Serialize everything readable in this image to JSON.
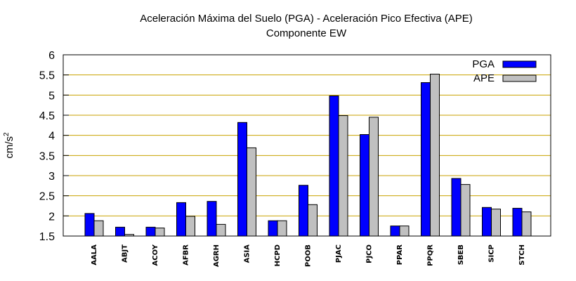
{
  "chart_data": {
    "type": "bar",
    "title": "Aceleración Máxima del Suelo (PGA) -  Aceleración Pico Efectiva (APE)",
    "subtitle": "Componente EW",
    "xlabel": "",
    "ylabel": "cm/s",
    "ylabel_sup": "2",
    "ylim": [
      1.5,
      6
    ],
    "yticks": [
      "1.5",
      "2",
      "2.5",
      "3",
      "3.5",
      "4",
      "4.5",
      "5",
      "5.5",
      "6"
    ],
    "ytick_values": [
      1.5,
      2,
      2.5,
      3,
      3.5,
      4,
      4.5,
      5,
      5.5,
      6
    ],
    "grid": true,
    "legend_position": "top-right",
    "categories": [
      "AALA",
      "ABJT",
      "ACOY",
      "AFBR",
      "AGRH",
      "ASIA",
      "HCPD",
      "POOB",
      "PJAC",
      "PJCO",
      "PPAR",
      "PPQR",
      "SBEB",
      "SICP",
      "STCH"
    ],
    "series": [
      {
        "name": "PGA",
        "color": "#0000ff",
        "values": [
          2.06,
          1.72,
          1.72,
          2.33,
          2.36,
          4.32,
          1.88,
          2.76,
          4.98,
          4.02,
          1.75,
          5.31,
          2.93,
          2.21,
          2.19
        ]
      },
      {
        "name": "APE",
        "color": "#c0c0c0",
        "values": [
          1.88,
          1.54,
          1.7,
          1.99,
          1.79,
          3.69,
          1.88,
          2.28,
          4.49,
          4.45,
          1.75,
          5.52,
          2.78,
          2.17,
          2.1
        ]
      }
    ]
  }
}
